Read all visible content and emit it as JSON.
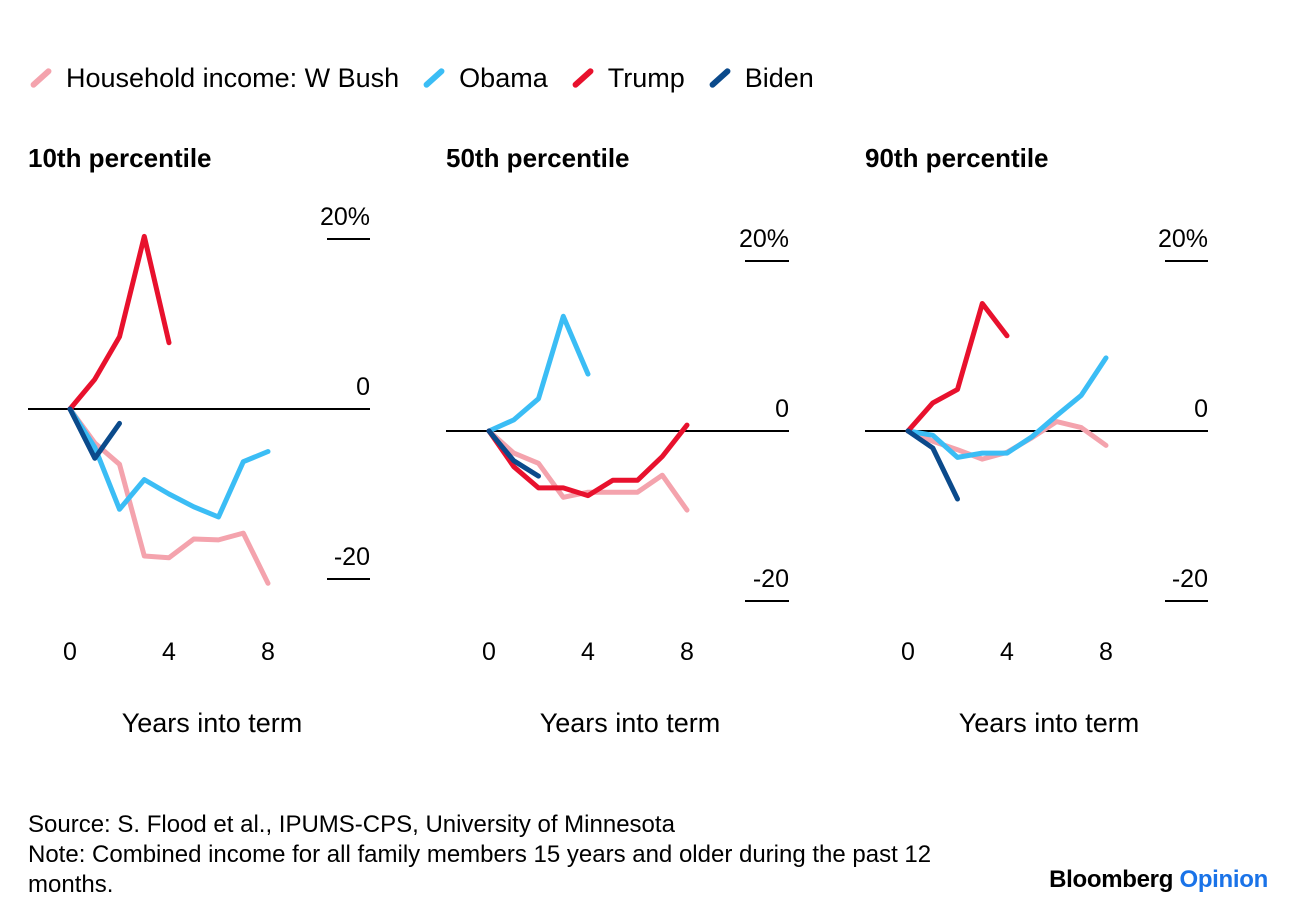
{
  "legend": [
    {
      "label": "Household income: W Bush",
      "color": "#f4a3ad"
    },
    {
      "label": "Obama",
      "color": "#3bbdf5"
    },
    {
      "label": "Trump",
      "color": "#e8112d"
    },
    {
      "label": "Biden",
      "color": "#0b4a8b"
    }
  ],
  "source": "Source: S. Flood et al., IPUMS-CPS, University of Minnesota",
  "note": "Note: Combined income for all family members 15 years and older during the past 12 months.",
  "brand": {
    "part1": "Bloomberg",
    "part2": "Opinion"
  },
  "chart_data": [
    {
      "type": "line",
      "title": "10th percentile",
      "xlabel": "Years into term",
      "ylabel": "",
      "xticks": [
        0,
        4,
        8
      ],
      "yticks": [
        {
          "value": 20,
          "label": "20%"
        },
        {
          "value": 0,
          "label": "0"
        },
        {
          "value": -20,
          "label": "-20"
        }
      ],
      "xlim": [
        0,
        8
      ],
      "series": [
        {
          "name": "W Bush",
          "color": "#f4a3ad",
          "x": [
            0,
            1,
            2,
            3,
            4,
            5,
            6,
            7,
            8
          ],
          "y": [
            0,
            -4,
            -6.5,
            -17.3,
            -17.5,
            -15.3,
            -15.4,
            -14.6,
            -20.5
          ]
        },
        {
          "name": "Obama",
          "color": "#3bbdf5",
          "x": [
            0,
            1,
            2,
            3,
            4,
            5,
            6,
            7,
            8
          ],
          "y": [
            0,
            -4.5,
            -11.8,
            -8.3,
            -10,
            -11.5,
            -12.7,
            -6.2,
            -5
          ]
        },
        {
          "name": "Trump",
          "color": "#e8112d",
          "x": [
            0,
            1,
            2,
            3,
            4
          ],
          "y": [
            0,
            3.5,
            8.5,
            20.3,
            7.8
          ]
        },
        {
          "name": "Biden",
          "color": "#0b4a8b",
          "x": [
            0,
            1,
            2
          ],
          "y": [
            0,
            -5.8,
            -1.7
          ]
        }
      ]
    },
    {
      "type": "line",
      "title": "50th percentile",
      "xlabel": "Years into term",
      "ylabel": "",
      "xticks": [
        0,
        4,
        8
      ],
      "yticks": [
        {
          "value": 20,
          "label": "20%"
        },
        {
          "value": 0,
          "label": "0"
        },
        {
          "value": -20,
          "label": "-20"
        }
      ],
      "xlim": [
        0,
        8
      ],
      "series": [
        {
          "name": "W Bush",
          "color": "#f4a3ad",
          "x": [
            0,
            1,
            2,
            3,
            4,
            5,
            6,
            7,
            8
          ],
          "y": [
            0,
            -2.6,
            -3.8,
            -7.8,
            -7.2,
            -7.2,
            -7.2,
            -5.2,
            -9.3
          ]
        },
        {
          "name": "Obama",
          "color": "#3bbdf5",
          "x": [
            0,
            1,
            2,
            3,
            4
          ],
          "y": [
            0,
            1.3,
            3.8,
            13.5,
            6.7
          ]
        },
        {
          "name": "Trump",
          "color": "#e8112d",
          "x": [
            0,
            1,
            2,
            3,
            4,
            5,
            6,
            7,
            8
          ],
          "y": [
            0,
            -4.2,
            -6.7,
            -6.7,
            -7.6,
            -5.8,
            -5.8,
            -3,
            0.7
          ]
        },
        {
          "name": "Biden",
          "color": "#0b4a8b",
          "x": [
            0,
            1,
            2
          ],
          "y": [
            0,
            -3.5,
            -5.3
          ]
        }
      ]
    },
    {
      "type": "line",
      "title": "90th percentile",
      "xlabel": "Years into term",
      "ylabel": "",
      "xticks": [
        0,
        4,
        8
      ],
      "yticks": [
        {
          "value": 20,
          "label": "20%"
        },
        {
          "value": 0,
          "label": "0"
        },
        {
          "value": -20,
          "label": "-20"
        }
      ],
      "xlim": [
        0,
        8
      ],
      "series": [
        {
          "name": "W Bush",
          "color": "#f4a3ad",
          "x": [
            0,
            1,
            2,
            3,
            4,
            5,
            6,
            7,
            8
          ],
          "y": [
            0,
            -1.2,
            -2.2,
            -3.3,
            -2.5,
            -0.8,
            1.1,
            0.4,
            -1.7
          ]
        },
        {
          "name": "Obama",
          "color": "#3bbdf5",
          "x": [
            0,
            1,
            2,
            3,
            4,
            5,
            6,
            7,
            8
          ],
          "y": [
            0,
            -0.5,
            -3.1,
            -2.6,
            -2.6,
            -0.7,
            1.8,
            4.2,
            8.6
          ]
        },
        {
          "name": "Trump",
          "color": "#e8112d",
          "x": [
            0,
            1,
            2,
            3,
            4
          ],
          "y": [
            0,
            3.3,
            4.9,
            15,
            11.2
          ]
        },
        {
          "name": "Biden",
          "color": "#0b4a8b",
          "x": [
            0,
            1,
            2
          ],
          "y": [
            0,
            -2,
            -8
          ]
        }
      ]
    }
  ]
}
